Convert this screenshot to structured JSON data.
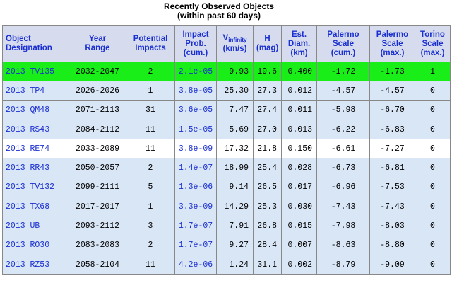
{
  "title": [
    "Recently Observed Objects",
    "(within past 60 days)"
  ],
  "table": {
    "headers": [
      [
        "Object",
        "Designation"
      ],
      [
        "Year",
        "Range"
      ],
      [
        "Potential",
        "Impacts"
      ],
      [
        "Impact",
        "Prob.",
        "(cum.)"
      ],
      [
        [
          "V",
          "infinity"
        ],
        "(km/s)"
      ],
      [
        "H",
        "(mag)"
      ],
      [
        "Est.",
        "Diam.",
        "(km)"
      ],
      [
        "Palermo",
        "Scale",
        "(cum.)"
      ],
      [
        "Palermo",
        "Scale",
        "(max.)"
      ],
      [
        "Torino",
        "Scale",
        "(max.)"
      ]
    ],
    "rows": [
      [
        "2013 TV135",
        "2032-2047",
        "2",
        "2.1e-05",
        "9.93",
        "19.6",
        "0.400",
        "-1.72",
        "-1.73",
        "1"
      ],
      [
        "2013 TP4",
        "2026-2026",
        "1",
        "3.8e-05",
        "25.30",
        "27.3",
        "0.012",
        "-4.57",
        "-4.57",
        "0"
      ],
      [
        "2013 QM48",
        "2071-2113",
        "31",
        "3.6e-05",
        "7.47",
        "27.4",
        "0.011",
        "-5.98",
        "-6.70",
        "0"
      ],
      [
        "2013 RS43",
        "2084-2112",
        "11",
        "1.5e-05",
        "5.69",
        "27.0",
        "0.013",
        "-6.22",
        "-6.83",
        "0"
      ],
      [
        "2013 RE74",
        "2033-2089",
        "11",
        "3.8e-09",
        "17.32",
        "21.8",
        "0.150",
        "-6.61",
        "-7.27",
        "0"
      ],
      [
        "2013 RR43",
        "2050-2057",
        "2",
        "1.4e-07",
        "18.99",
        "25.4",
        "0.028",
        "-6.73",
        "-6.81",
        "0"
      ],
      [
        "2013 TV132",
        "2099-2111",
        "5",
        "1.3e-06",
        "9.14",
        "26.5",
        "0.017",
        "-6.96",
        "-7.53",
        "0"
      ],
      [
        "2013 TX68",
        "2017-2017",
        "1",
        "3.3e-09",
        "14.29",
        "25.3",
        "0.030",
        "-7.43",
        "-7.43",
        "0"
      ],
      [
        "2013 UB",
        "2093-2112",
        "3",
        "1.7e-07",
        "7.91",
        "26.8",
        "0.015",
        "-7.98",
        "-8.03",
        "0"
      ],
      [
        "2013 RO30",
        "2083-2083",
        "2",
        "1.7e-07",
        "9.27",
        "28.4",
        "0.007",
        "-8.63",
        "-8.80",
        "0"
      ],
      [
        "2013 RZ53",
        "2058-2104",
        "11",
        "4.2e-06",
        "1.24",
        "31.1",
        "0.002",
        "-8.79",
        "-9.09",
        "0"
      ]
    ]
  }
}
